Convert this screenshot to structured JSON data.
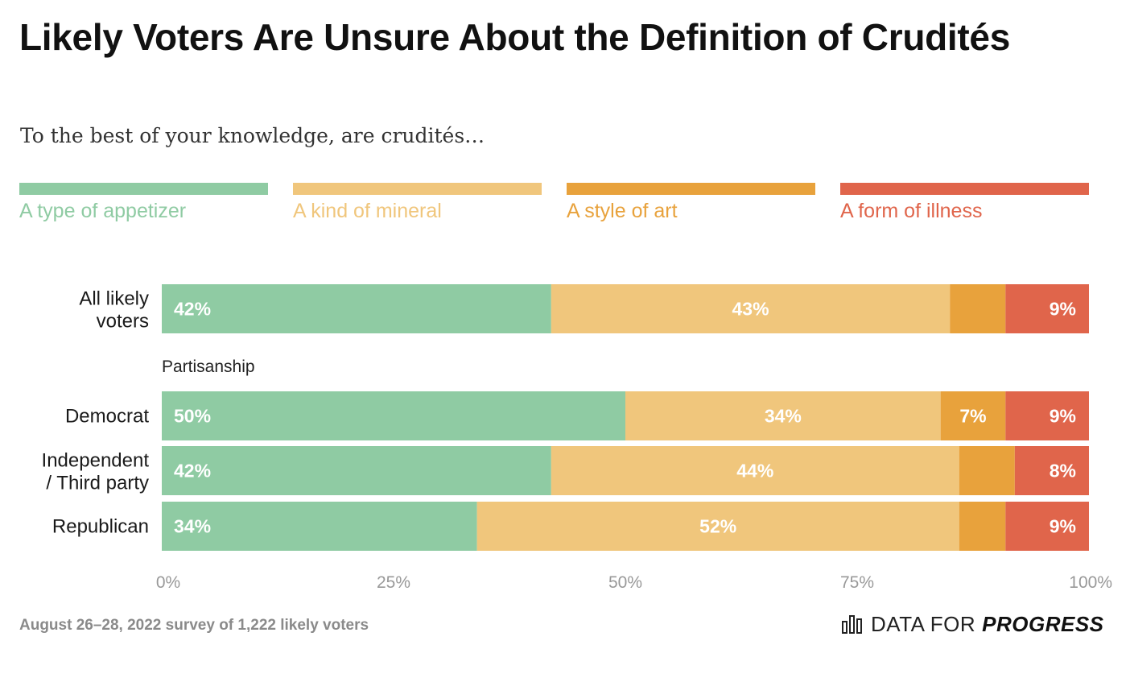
{
  "title": "Likely Voters Are Unsure About the Definition of Crudités",
  "subtitle": "To the best of your knowledge, are crudités…",
  "source_note": "August 26–28, 2022 survey of 1,222 likely voters",
  "brand": {
    "icon": "bar-chart-icon",
    "text_regular": "DATA FOR",
    "text_bold": "PROGRESS"
  },
  "colors": {
    "A type of appetizer": "#8fcba3",
    "A kind of mineral": "#f0c67c",
    "A style of art": "#e8a23c",
    "A form of illness": "#e0654b"
  },
  "chart_data": {
    "type": "bar",
    "orientation": "horizontal",
    "stacked": true,
    "legend": [
      "A type of appetizer",
      "A kind of mineral",
      "A style of art",
      "A form of illness"
    ],
    "legend_position": "top",
    "group_label": "Partisanship",
    "categories": [
      "All likely voters",
      "Democrat",
      "Independent / Third party",
      "Republican"
    ],
    "series": [
      {
        "name": "A type of appetizer",
        "values": [
          42,
          50,
          42,
          34
        ]
      },
      {
        "name": "A kind of mineral",
        "values": [
          43,
          34,
          44,
          52
        ]
      },
      {
        "name": "A style of art",
        "values": [
          6,
          7,
          6,
          5
        ]
      },
      {
        "name": "A form of illness",
        "values": [
          9,
          9,
          8,
          9
        ]
      }
    ],
    "data_labels": [
      [
        "42%",
        "43%",
        "",
        "9%"
      ],
      [
        "50%",
        "34%",
        "7%",
        "9%"
      ],
      [
        "42%",
        "44%",
        "",
        "8%"
      ],
      [
        "34%",
        "52%",
        "",
        "9%"
      ]
    ],
    "xlim": [
      0,
      100
    ],
    "xticks": [
      0,
      25,
      50,
      75,
      100
    ],
    "xtick_labels": [
      "0%",
      "25%",
      "50%",
      "75%",
      "100%"
    ],
    "xlabel": "",
    "ylabel": "",
    "grid": false
  }
}
